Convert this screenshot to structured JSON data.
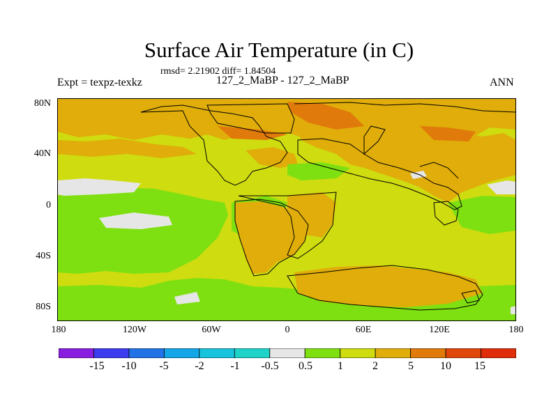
{
  "title": "Surface Air Temperature (in C)",
  "stats_line": "rmsd= 2.21902 diff= 1.84504",
  "experiment_label": "Expt = texpz-texkz",
  "case_label": "127_2_MaBP - 127_2_MaBP",
  "season_label": "ANN",
  "axes": {
    "y_ticks": [
      "80N",
      "40N",
      "0",
      "40S",
      "80S"
    ],
    "x_ticks": [
      "180",
      "120W",
      "60W",
      "0",
      "60E",
      "120E",
      "180"
    ]
  },
  "colorbar": {
    "labels": [
      "-15",
      "-10",
      "-5",
      "-2",
      "-1",
      "-0.5",
      "0.5",
      "1",
      "2",
      "5",
      "10",
      "15"
    ],
    "colors": [
      "#8a1ee0",
      "#3d3df0",
      "#2172e6",
      "#15a6e8",
      "#18c4dd",
      "#20d3c9",
      "#e6e6e6",
      "#7ee010",
      "#cedc10",
      "#e0ad0a",
      "#e07a0a",
      "#e0450a",
      "#e02d0a"
    ]
  },
  "map_colors": {
    "ocean": "#cedc10",
    "warm": "#e0ad0a",
    "warmer": "#e07a0a",
    "cool": "#7ee010",
    "neutral": "#e6e6e6",
    "coast": "#000000"
  }
}
